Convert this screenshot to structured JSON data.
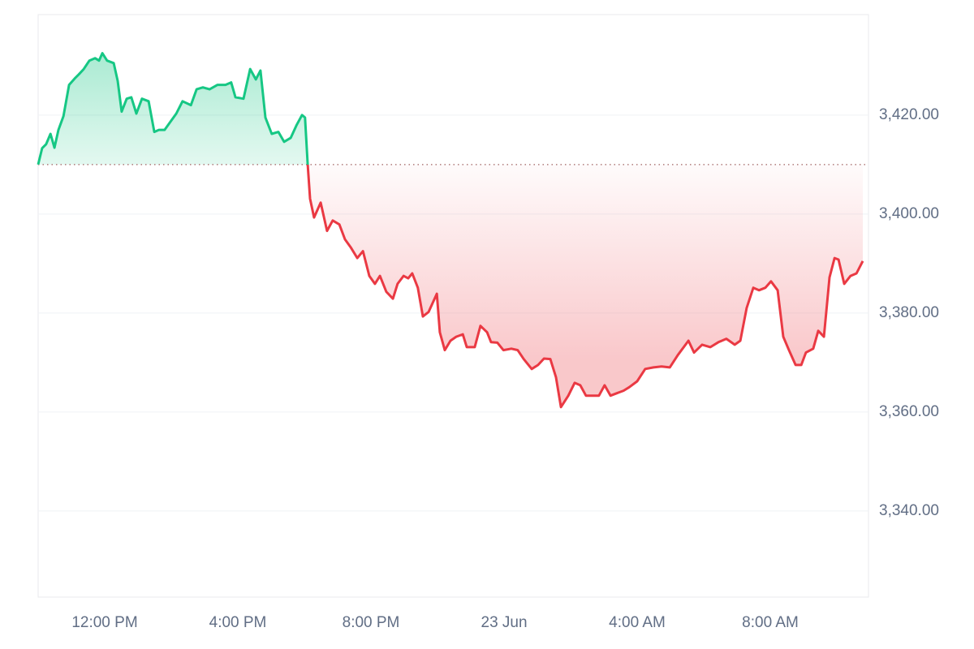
{
  "chart_data": {
    "type": "line",
    "x": [
      10.0,
      10.12,
      10.24,
      10.37,
      10.49,
      10.61,
      10.76,
      10.93,
      11.1,
      11.22,
      11.37,
      11.54,
      11.71,
      11.83,
      11.93,
      12.07,
      12.27,
      12.39,
      12.51,
      12.66,
      12.8,
      12.95,
      13.12,
      13.32,
      13.49,
      13.63,
      13.8,
      13.98,
      14.15,
      14.34,
      14.59,
      14.76,
      14.95,
      15.15,
      15.39,
      15.63,
      15.8,
      15.93,
      16.17,
      16.37,
      16.54,
      16.68,
      16.83,
      17.02,
      17.22,
      17.39,
      17.59,
      17.76,
      17.93,
      18.02,
      18.1,
      18.17,
      18.29,
      18.49,
      18.68,
      18.85,
      19.05,
      19.22,
      19.39,
      19.59,
      19.76,
      19.95,
      20.12,
      20.27,
      20.46,
      20.66,
      20.8,
      20.98,
      21.12,
      21.24,
      21.41,
      21.56,
      21.73,
      21.98,
      22.07,
      22.22,
      22.39,
      22.56,
      22.76,
      22.88,
      23.12,
      23.29,
      23.49,
      23.61,
      23.8,
      23.98,
      24.22,
      24.41,
      24.59,
      24.83,
      25.02,
      25.2,
      25.39,
      25.56,
      25.71,
      25.93,
      26.12,
      26.29,
      26.46,
      26.66,
      26.85,
      27.02,
      27.2,
      27.39,
      27.59,
      27.76,
      28.0,
      28.24,
      28.49,
      28.73,
      28.98,
      29.22,
      29.54,
      29.71,
      29.95,
      30.2,
      30.44,
      30.68,
      30.93,
      31.1,
      31.29,
      31.49,
      31.66,
      31.85,
      32.02,
      32.22,
      32.39,
      32.56,
      32.76,
      32.93,
      33.07,
      33.29,
      33.44,
      33.61,
      33.78,
      33.93,
      34.05,
      34.22,
      34.41,
      34.59,
      34.78
    ],
    "values": [
      3410.0,
      3413.3,
      3414.1,
      3416.2,
      3413.4,
      3417.0,
      3419.8,
      3426.1,
      3427.4,
      3428.2,
      3429.3,
      3431.0,
      3431.5,
      3431.0,
      3432.5,
      3431.0,
      3430.5,
      3426.9,
      3420.7,
      3423.3,
      3423.6,
      3420.3,
      3423.3,
      3422.8,
      3416.6,
      3417.0,
      3417.0,
      3418.7,
      3420.3,
      3422.8,
      3422.0,
      3425.2,
      3425.6,
      3425.2,
      3426.1,
      3426.1,
      3426.6,
      3423.6,
      3423.3,
      3429.3,
      3427.2,
      3429.0,
      3419.5,
      3416.2,
      3416.6,
      3414.6,
      3415.4,
      3417.9,
      3420.0,
      3419.5,
      3410.0,
      3403.1,
      3399.3,
      3402.3,
      3396.6,
      3398.7,
      3397.9,
      3394.9,
      3393.3,
      3391.1,
      3392.5,
      3387.5,
      3385.9,
      3387.5,
      3384.3,
      3382.9,
      3385.9,
      3387.5,
      3387.0,
      3388.0,
      3385.1,
      3379.3,
      3380.2,
      3383.9,
      3376.1,
      3372.5,
      3374.4,
      3375.2,
      3375.7,
      3373.1,
      3373.1,
      3377.4,
      3376.1,
      3374.1,
      3374.0,
      3372.5,
      3372.8,
      3372.5,
      3370.7,
      3368.7,
      3369.5,
      3370.8,
      3370.7,
      3367.0,
      3361.0,
      3363.3,
      3365.9,
      3365.4,
      3363.3,
      3363.3,
      3363.3,
      3365.4,
      3363.3,
      3363.8,
      3364.3,
      3365.0,
      3366.2,
      3368.7,
      3369.0,
      3369.2,
      3369.0,
      3371.5,
      3374.4,
      3372.0,
      3373.6,
      3373.1,
      3374.1,
      3374.8,
      3373.6,
      3374.4,
      3381.0,
      3385.1,
      3384.6,
      3385.1,
      3386.4,
      3384.6,
      3375.2,
      3372.5,
      3369.5,
      3369.5,
      3372.0,
      3372.8,
      3376.4,
      3375.2,
      3387.2,
      3391.1,
      3390.8,
      3385.9,
      3387.5,
      3388.0,
      3390.5
    ],
    "baseline": 3410,
    "up_color": "#16c784",
    "down_color": "#ea3943",
    "xlim": [
      10,
      34.95
    ],
    "xticks": [
      {
        "value": 12,
        "label": "12:00 PM"
      },
      {
        "value": 16,
        "label": "4:00 PM"
      },
      {
        "value": 20,
        "label": "8:00 PM"
      },
      {
        "value": 24,
        "label": "23 Jun"
      },
      {
        "value": 28,
        "label": "4:00 AM"
      },
      {
        "value": 32,
        "label": "8:00 AM"
      }
    ],
    "ylim": [
      3322.6,
      3440.3
    ],
    "yticks": [
      {
        "value": 3340,
        "label": "3,340.00"
      },
      {
        "value": 3360,
        "label": "3,360.00"
      },
      {
        "value": 3380,
        "label": "3,380.00"
      },
      {
        "value": 3400,
        "label": "3,400.00"
      },
      {
        "value": 3420,
        "label": "3,420.00"
      }
    ],
    "grid": true
  }
}
